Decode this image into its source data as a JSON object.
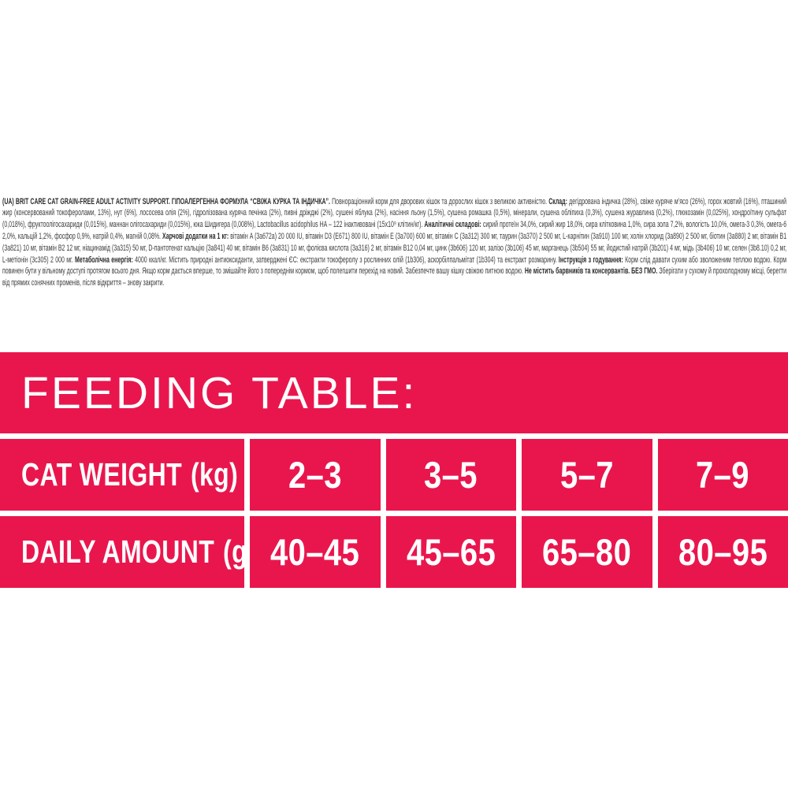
{
  "colors": {
    "table_red": "#E9164D",
    "table_text": "#FFFFFF",
    "body_text": "#3C3C3C",
    "background": "#FFFFFF"
  },
  "label_text": {
    "segments": [
      {
        "bold": true,
        "text": "(UA) BRIT CARE CAT GRAIN-FREE ADULT ACTIVITY SUPPORT. ГІПОАЛЕРГЕННА ФОРМУЛА “СВІЖА КУРКА ТА ІНДИЧКА”. "
      },
      {
        "bold": false,
        "text": "Повнораціонний корм для дворових кішок та дорослих кішок з великою активністю. "
      },
      {
        "bold": true,
        "text": "Склад: "
      },
      {
        "bold": false,
        "text": "дегідрована індичка (28%), свіже куряче м’ясо (26%), горох жовтий (16%), пташиний жир (консервований токоферолами, 13%), нут (6%), лососева олія (2%), гідролізована куряча печінка (2%), пивні дріжджі (2%), сушені яблука (2%), насіння льону (1,5%), сушена ромашка (0,5%), мінерали, сушена обліпиха (0,3%), сушена журавлина (0,2%), глюкозамін (0,025%), хондроїтину сульфат (0,018%), фруктоолігосахариди (0,015%), маннан олігосахариди (0,015%), юка Шидигера (0,008%), Lactobacillus acidophilus HA – 122 інактивовані (15х10⁹ клітин/кг). "
      },
      {
        "bold": true,
        "text": "Аналітичні складові: "
      },
      {
        "bold": false,
        "text": "сирий протеїн 34,0%, сирий жир 18,0%, сира клітковина 1,0%, сира зола 7,2%, вологість 10,0%, омега-3 0,3%, омега-6 2,0%, кальцій 1,2%, фосфор 0,9%, натрій 0,4%, магній 0,08%. "
      },
      {
        "bold": true,
        "text": "Харчові додатки на 1 кг: "
      },
      {
        "bold": false,
        "text": "вітамін A (3a672a) 20 000 IU, вітамін D3 (E671) 800 IU, вітамін E (3a700) 600 мг, вітамін C (3a312) 300 мг, таурин (3a370) 2 500 мг, L-карнітин (3a910) 100 мг, холін хлорид (3a890) 2 500 мг, біотин (3a880) 2 мг, вітамін B1 (3a821) 10 мг, вітамін B2 12 мг, ніацинамід (3a315) 50 мг, D-пантотенат кальцію (3a841) 40 мг, вітамін B6 (3a831) 10 мг, фолієва кислота (3a316) 2 мг, вітамін B12 0,04 мг, цинк (3b606) 120 мг, залізо (3b106) 45 мг, марганець (3b504) 55 мг, йодистий натрій (3b201) 4 мг, мідь (3b406) 10 мг, селен (3b8.10) 0,2 мг, L-метіонін (3c305) 2 000 мг. "
      },
      {
        "bold": true,
        "text": "Метаболічна енергія: "
      },
      {
        "bold": false,
        "text": "4000 ккал/кг. Містить природні антиоксиданти, затверджені ЄС: екстракти токоферолу з рослинних олій (1b306), аскорбілпальмітат (1b304) та екстракт розмарину. "
      },
      {
        "bold": true,
        "text": "Інструкція з годування: "
      },
      {
        "bold": false,
        "text": "Корм слід давати сухим або зволоженим теплою водою. Корм повинен бути у вільному доступі протягом всього дня. Якщо корм дається вперше, то змішайте його з попереднім кормом, щоб полегшити перехід на новий. Забезпечте вашу кішку свіжою питною водою. "
      },
      {
        "bold": true,
        "text": "Не містить барвників та консервантів. БЕЗ ГМО. "
      },
      {
        "bold": false,
        "text": "Зберігати у сухому й прохолодному місці, берегти від прямих сонячних променів, після відкриття – знову закрити."
      }
    ]
  },
  "feeding_table": {
    "title": "FEEDING TABLE:",
    "rows": [
      {
        "label": "CAT WEIGHT",
        "unit": "(kg)",
        "values": [
          "2–3",
          "3–5",
          "5–7",
          "7–9"
        ]
      },
      {
        "label": "DAILY AMOUNT",
        "unit": "(g/day)",
        "values": [
          "40–45",
          "45–65",
          "65–80",
          "80–95"
        ]
      }
    ]
  },
  "chart_data": {
    "type": "table",
    "title": "FEEDING TABLE:",
    "columns": [
      "CAT WEIGHT (kg)",
      "2–3",
      "3–5",
      "5–7",
      "7–9"
    ],
    "rows": [
      [
        "DAILY AMOUNT (g/day)",
        "40–45",
        "45–65",
        "65–80",
        "80–95"
      ]
    ]
  }
}
